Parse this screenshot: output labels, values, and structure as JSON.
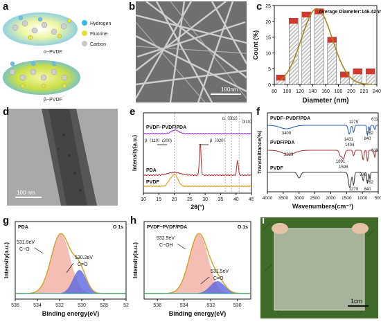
{
  "figure": {
    "panels": {
      "a": {
        "letter": "a",
        "legend": [
          {
            "label": "Hydrogen",
            "color": "#35b8e8"
          },
          {
            "label": "Fluorine",
            "color": "#e6e032"
          },
          {
            "label": "Carbon",
            "color": "#c8c8c8"
          }
        ],
        "alpha_label": "α−PVDF",
        "beta_label": "β−PVDF"
      },
      "b": {
        "letter": "b",
        "scalebar": "100nm"
      },
      "c": {
        "letter": "c"
      },
      "d": {
        "letter": "d",
        "scalebar": "100 nm"
      },
      "e": {
        "letter": "e"
      },
      "f": {
        "letter": "f"
      },
      "g": {
        "letter": "g"
      },
      "h": {
        "letter": "h"
      },
      "i": {
        "letter": "i",
        "scalebar": "1cm"
      }
    }
  },
  "chart_data": [
    {
      "id": "c",
      "type": "bar",
      "annotation": "Average Diameter:146.42nm",
      "xlabel": "Diameter (nm)",
      "ylabel": "Count (%)",
      "xticks": [
        "80",
        "100",
        "120",
        "140",
        "160",
        "180",
        "200",
        "220",
        "240"
      ],
      "yticks": [
        "0",
        "5",
        "10",
        "15",
        "20",
        "25"
      ],
      "ylim": [
        0,
        25
      ],
      "x": [
        90,
        110,
        130,
        150,
        170,
        190,
        210,
        230
      ],
      "values": [
        3,
        21,
        23,
        24,
        15,
        4,
        5,
        5
      ],
      "fit_curve": "gaussian",
      "colors": {
        "bar_top": "#d2382b",
        "bar_hatch": "#8a8a8a",
        "curve": "#a08a1e"
      }
    },
    {
      "id": "e",
      "type": "line",
      "xlabel": "2θ(°)",
      "ylabel": "Intensity(a.u.)",
      "xticks": [
        "10",
        "15",
        "20",
        "25",
        "30",
        "35",
        "40",
        "45"
      ],
      "xlim": [
        10,
        45
      ],
      "series": [
        {
          "name": "PVDF−PVDF/PDA",
          "color": "#9b3ed0"
        },
        {
          "name": "PDA",
          "color": "#b5393b"
        },
        {
          "name": "PVDF",
          "color": "#e39a1a"
        }
      ],
      "annotations": [
        "β（110）(200)",
        "β（020）",
        "α（002）",
        "（310）"
      ]
    },
    {
      "id": "f",
      "type": "line",
      "xlabel": "Wavenumbers(cm⁻¹)",
      "ylabel": "Transmittance(%)",
      "xticks": [
        "4000",
        "3500",
        "3000",
        "2500",
        "2000",
        "1500",
        "1000",
        "500"
      ],
      "xlim": [
        4000,
        500
      ],
      "series": [
        {
          "name": "PVDF−PVDF/PDA",
          "color": "#2b63c9"
        },
        {
          "name": "PVDF/PDA",
          "color": "#b5393b"
        },
        {
          "name": "PVDF",
          "color": "#444444"
        }
      ],
      "peak_labels": [
        "3400",
        "1279",
        "1431",
        "1404",
        "611",
        "840",
        "762",
        "3329",
        "1691",
        "1598",
        "611",
        "976",
        "1279",
        "840",
        "762"
      ]
    },
    {
      "id": "g",
      "type": "area",
      "title_left": "PDA",
      "title_right": "O 1s",
      "xlabel": "Binding energy(eV)",
      "ylabel": "Intensity(a.u.)",
      "xticks": [
        "536",
        "534",
        "532",
        "530",
        "528",
        "52"
      ],
      "xlim": [
        536,
        526
      ],
      "peaks": [
        {
          "energy": 531.9,
          "label1": "531.9eV",
          "label2": "C−O",
          "color": "#f2a89c"
        },
        {
          "energy": 530.2,
          "label1": "530.2eV",
          "label2": "C=O",
          "color": "#5a67e0"
        }
      ]
    },
    {
      "id": "h",
      "type": "area",
      "title_left": "PVDF−PVDF/PDA",
      "title_right": "O 1s",
      "xlabel": "Binding energy(eV)",
      "ylabel": "Intensity(a.u.)",
      "xticks": [
        "536",
        "534",
        "532",
        "530"
      ],
      "xlim": [
        537,
        529
      ],
      "peaks": [
        {
          "energy": 532.9,
          "label1": "532.9eV",
          "label2": "C−OH",
          "color": "#f2a89c"
        },
        {
          "energy": 531.5,
          "label1": "531.5eV",
          "label2": "C=O",
          "color": "#5a67e0"
        }
      ]
    }
  ]
}
